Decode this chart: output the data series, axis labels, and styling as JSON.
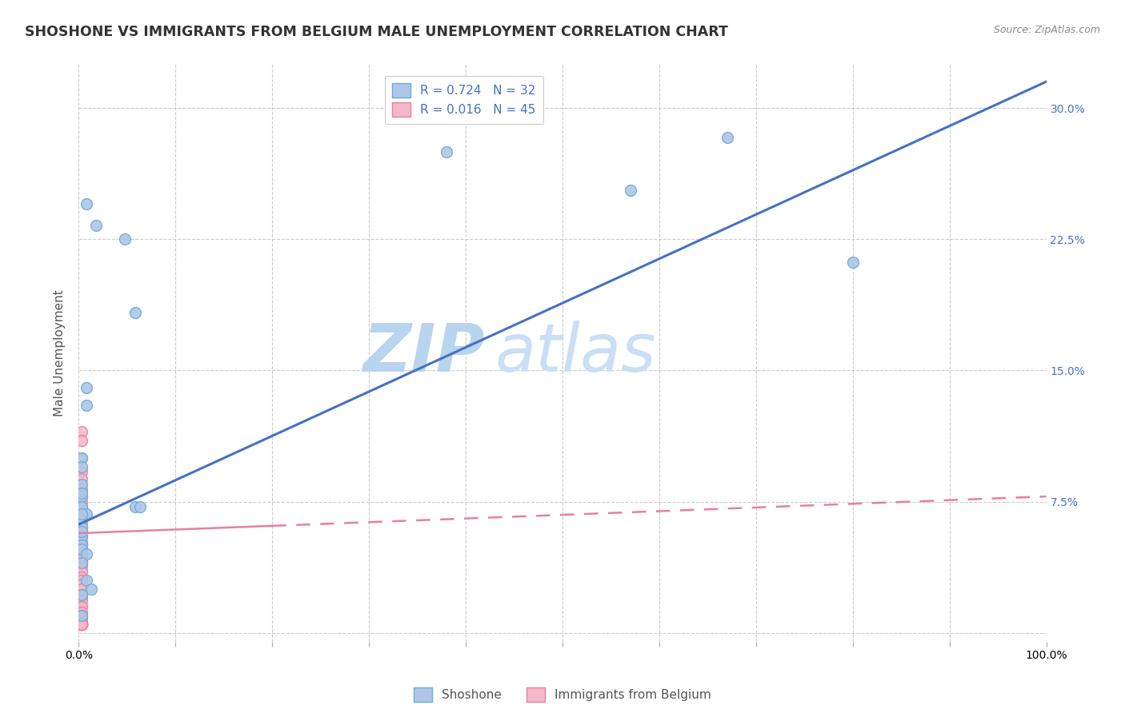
{
  "title": "SHOSHONE VS IMMIGRANTS FROM BELGIUM MALE UNEMPLOYMENT CORRELATION CHART",
  "source": "Source: ZipAtlas.com",
  "ylabel": "Male Unemployment",
  "watermark_zip": "ZIP",
  "watermark_atlas": "atlas",
  "legend_r1": "R = 0.724",
  "legend_n1": "N = 32",
  "legend_r2": "R = 0.016",
  "legend_n2": "N = 45",
  "xlim": [
    0.0,
    1.0
  ],
  "ylim": [
    -0.005,
    0.325
  ],
  "yticks": [
    0.0,
    0.075,
    0.15,
    0.225,
    0.3
  ],
  "ytick_labels": [
    "",
    "7.5%",
    "15.0%",
    "22.5%",
    "30.0%"
  ],
  "xticks": [
    0.0,
    0.1,
    0.2,
    0.3,
    0.4,
    0.5,
    0.6,
    0.7,
    0.8,
    0.9,
    1.0
  ],
  "xtick_labels": [
    "0.0%",
    "",
    "",
    "",
    "",
    "",
    "",
    "",
    "",
    "",
    "100.0%"
  ],
  "shoshone_x": [
    0.008,
    0.018,
    0.008,
    0.008,
    0.003,
    0.003,
    0.003,
    0.003,
    0.003,
    0.008,
    0.003,
    0.003,
    0.003,
    0.003,
    0.003,
    0.008,
    0.008,
    0.013,
    0.048,
    0.058,
    0.058,
    0.063,
    0.38,
    0.57,
    0.67,
    0.8,
    0.003,
    0.003,
    0.003,
    0.003,
    0.003,
    0.003
  ],
  "shoshone_y": [
    0.245,
    0.233,
    0.14,
    0.13,
    0.1,
    0.095,
    0.085,
    0.078,
    0.072,
    0.068,
    0.065,
    0.06,
    0.055,
    0.05,
    0.048,
    0.045,
    0.03,
    0.025,
    0.225,
    0.183,
    0.072,
    0.072,
    0.275,
    0.253,
    0.283,
    0.212,
    0.08,
    0.068,
    0.058,
    0.04,
    0.022,
    0.01
  ],
  "belgium_x": [
    0.003,
    0.003,
    0.003,
    0.003,
    0.003,
    0.003,
    0.003,
    0.003,
    0.003,
    0.003,
    0.003,
    0.003,
    0.003,
    0.003,
    0.003,
    0.003,
    0.003,
    0.003,
    0.003,
    0.003,
    0.003,
    0.003,
    0.003,
    0.003,
    0.003,
    0.003,
    0.003,
    0.003,
    0.003,
    0.003,
    0.003,
    0.003,
    0.003,
    0.003,
    0.003,
    0.003,
    0.003,
    0.003,
    0.003,
    0.003,
    0.003,
    0.003,
    0.003,
    0.003,
    0.003
  ],
  "belgium_y": [
    0.115,
    0.11,
    0.1,
    0.092,
    0.088,
    0.082,
    0.078,
    0.075,
    0.072,
    0.07,
    0.068,
    0.062,
    0.058,
    0.055,
    0.052,
    0.05,
    0.048,
    0.045,
    0.042,
    0.04,
    0.038,
    0.035,
    0.032,
    0.03,
    0.028,
    0.025,
    0.022,
    0.02,
    0.018,
    0.015,
    0.012,
    0.01,
    0.008,
    0.006,
    0.005,
    0.005,
    0.005,
    0.005,
    0.005,
    0.005,
    0.005,
    0.005,
    0.005,
    0.005,
    0.005
  ],
  "shoshone_color": "#aec6e8",
  "shoshone_edge": "#6aaed6",
  "belgium_color": "#f4b8c8",
  "belgium_edge": "#e87fa0",
  "trendline_blue_color": "#4472c4",
  "trendline_pink_color": "#e87fa0",
  "trendline_shoshone_x0": 0.0,
  "trendline_shoshone_y0": 0.062,
  "trendline_shoshone_x1": 1.0,
  "trendline_shoshone_y1": 0.315,
  "trendline_belgium_x0": 0.0,
  "trendline_belgium_y0": 0.057,
  "trendline_belgium_x1": 1.0,
  "trendline_belgium_y1": 0.078,
  "title_fontsize": 12.5,
  "axis_label_fontsize": 11,
  "tick_fontsize": 10,
  "legend_fontsize": 11,
  "watermark_fontsize_zip": 60,
  "watermark_fontsize_atlas": 60,
  "watermark_color": "#d8eaf8",
  "background_color": "#ffffff",
  "grid_color": "#cccccc",
  "source_fontsize": 9,
  "marker_size": 100
}
